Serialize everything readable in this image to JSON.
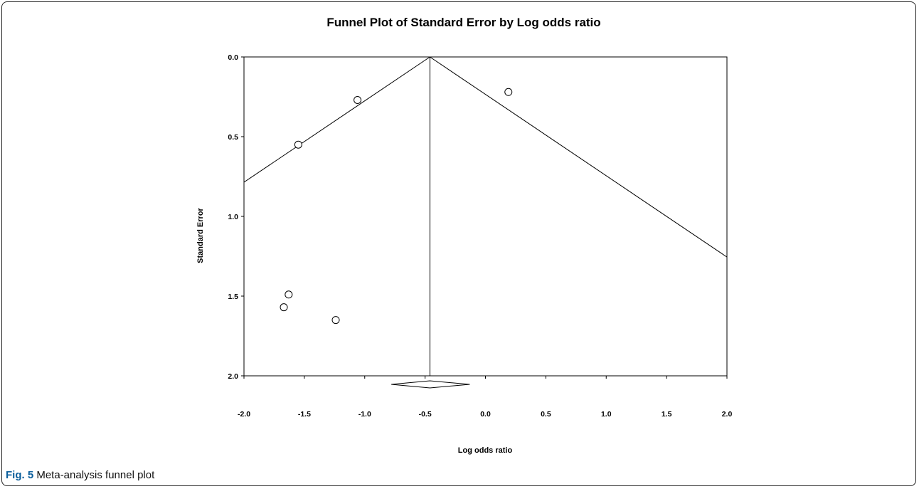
{
  "caption": {
    "label": "Fig. 5",
    "text": "Meta-analysis funnel plot"
  },
  "chart_data": {
    "type": "scatter",
    "title": "Funnel Plot of Standard Error by Log odds ratio",
    "xlabel": "Log odds ratio",
    "ylabel": "Standard Error",
    "xlim": [
      -2.0,
      2.0
    ],
    "ylim": [
      0.0,
      2.0
    ],
    "y_inverted": true,
    "x_ticks": [
      "-2.0",
      "-1.5",
      "-1.0",
      "-0.5",
      "0.0",
      "0.5",
      "1.0",
      "1.5",
      "2.0"
    ],
    "x_tick_values": [
      -2.0,
      -1.5,
      -1.0,
      -0.5,
      0.0,
      0.5,
      1.0,
      1.5,
      2.0
    ],
    "y_ticks": [
      "0.0",
      "0.5",
      "1.0",
      "1.5",
      "2.0"
    ],
    "y_tick_values": [
      0.0,
      0.5,
      1.0,
      1.5,
      2.0
    ],
    "points": [
      {
        "x": -1.06,
        "y": 0.27
      },
      {
        "x": 0.19,
        "y": 0.22
      },
      {
        "x": -1.55,
        "y": 0.55
      },
      {
        "x": -1.63,
        "y": 1.49
      },
      {
        "x": -1.67,
        "y": 1.57
      },
      {
        "x": -1.24,
        "y": 1.65
      }
    ],
    "pooled_estimate": -0.46,
    "funnel_slope_per_se": 1.96,
    "diamond": {
      "center": -0.46,
      "lower": -0.78,
      "upper": -0.13
    },
    "grid": false,
    "marker": "open-circle"
  }
}
